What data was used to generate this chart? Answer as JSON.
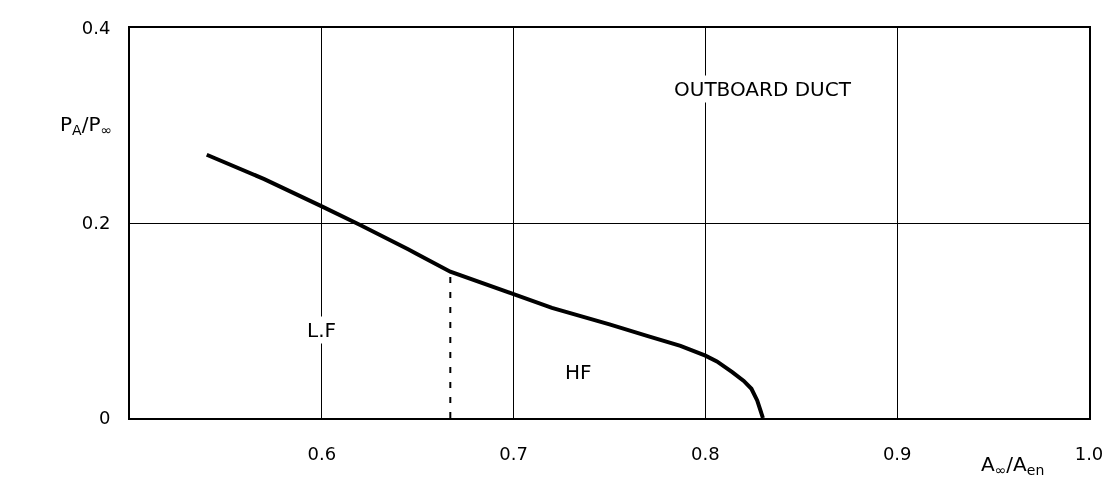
{
  "chart_data": {
    "type": "line",
    "xlabel": "A$_{∞}$/A$_{en}$",
    "ylabel": "P$_{A}$/P$_{∞}$",
    "annotations": [
      "OUTBOARD DUCT",
      {
        "text": "L.F",
        "x": 0.6,
        "y": 0.09
      },
      {
        "text": "HF",
        "x": 0.734,
        "y": 0.047
      }
    ],
    "xlim": [
      0.5,
      1.0
    ],
    "ylim": [
      0,
      0.4
    ],
    "xticks": [
      0.6,
      0.7,
      0.8,
      0.9,
      {
        "value": 1.0,
        "label": "1.0"
      }
    ],
    "yticks": [
      0,
      0.2,
      0.4
    ],
    "grid": true,
    "series": [
      {
        "color": "#000000",
        "line_style": "solid",
        "x": [
          0.54,
          0.57,
          0.6,
          0.62,
          0.645,
          0.667,
          0.7,
          0.72,
          0.75,
          0.77,
          0.787,
          0.8,
          0.806,
          0.814,
          0.82,
          0.824,
          0.827,
          0.83
        ],
        "values": [
          0.27,
          0.245,
          0.217,
          0.198,
          0.173,
          0.15,
          0.127,
          0.113,
          0.096,
          0.084,
          0.074,
          0.064,
          0.058,
          0.047,
          0.038,
          0.03,
          0.018,
          0
        ]
      },
      {
        "color": "#000000",
        "line_style": "dashed",
        "x": [
          0.667,
          0.667
        ],
        "values": [
          0,
          0.15
        ]
      }
    ]
  }
}
